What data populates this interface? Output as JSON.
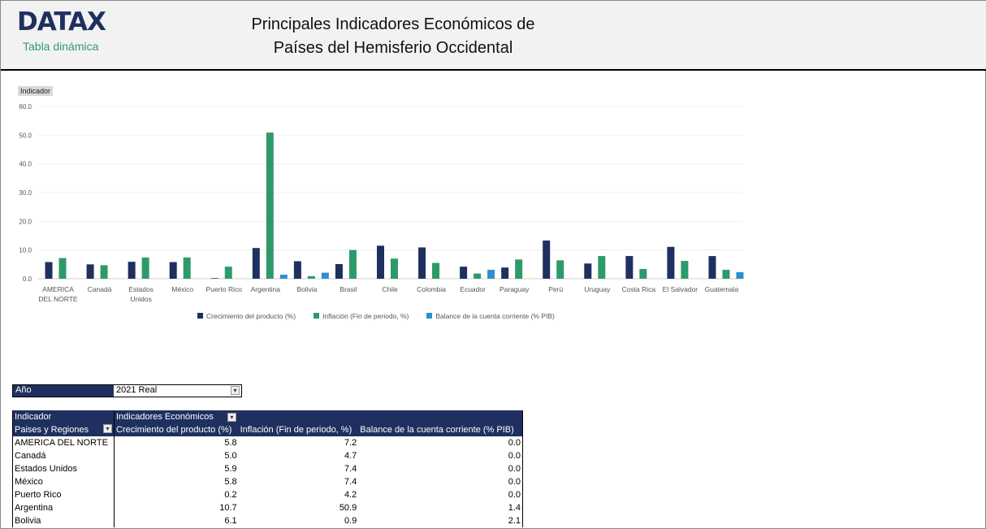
{
  "header": {
    "logo": "DATAX",
    "subtitle": "Tabla dinámica",
    "title_line1": "Principales Indicadores Económicos de",
    "title_line2": "Países del Hemisferio Occidental"
  },
  "chart_button": "Indicador",
  "chart_data": {
    "type": "bar",
    "ylim": [
      0,
      60
    ],
    "yticks": [
      "0.0",
      "10.0",
      "20.0",
      "30.0",
      "40.0",
      "50.0",
      "60.0"
    ],
    "grid": true,
    "legend_position": "bottom",
    "categories": [
      "AMERICA DEL NORTE",
      "Canadá",
      "Estados Unidos",
      "México",
      "Puerto Rico",
      "Argentina",
      "Bolivia",
      "Brasil",
      "Chile",
      "Colombia",
      "Ecuador",
      "Paraguay",
      "Perú",
      "Uruguay",
      "Costa Rica",
      "El Salvador",
      "Guatemala"
    ],
    "series": [
      {
        "name": "Crecimiento del producto (%)",
        "color": "#1f3060",
        "values": [
          5.8,
          5.0,
          5.9,
          5.8,
          0.2,
          10.7,
          6.1,
          5.1,
          11.5,
          10.9,
          4.2,
          3.9,
          13.3,
          5.3,
          7.9,
          11.1,
          7.9
        ]
      },
      {
        "name": "Inflación (Fin de periodo, %)",
        "color": "#2e9a6a",
        "values": [
          7.2,
          4.7,
          7.4,
          7.4,
          4.2,
          50.9,
          0.9,
          10.0,
          7.0,
          5.5,
          1.8,
          6.7,
          6.4,
          7.9,
          3.4,
          6.2,
          3.1
        ]
      },
      {
        "name": "Balance de la cuenta corriente (% PIB)",
        "color": "#2e8fd0",
        "values": [
          0,
          0,
          0,
          0,
          0,
          1.4,
          2.1,
          0,
          0,
          0,
          3.1,
          0,
          0,
          0,
          0,
          0,
          2.3
        ]
      }
    ]
  },
  "filter": {
    "label": "Año",
    "value": "2021 Real"
  },
  "table": {
    "row1": [
      "Indicador",
      "Indicadores Económicos"
    ],
    "headers": [
      "Paises y Regiones",
      "Crecimiento del producto (%)",
      "Inflación (Fin de periodo, %)",
      "Balance de la cuenta corriente (% PIB)"
    ],
    "rows": [
      [
        "AMERICA DEL NORTE",
        "5.8",
        "7.2",
        "0.0"
      ],
      [
        "Canadá",
        "5.0",
        "4.7",
        "0.0"
      ],
      [
        "Estados Unidos",
        "5.9",
        "7.4",
        "0.0"
      ],
      [
        "México",
        "5.8",
        "7.4",
        "0.0"
      ],
      [
        "Puerto Rico",
        "0.2",
        "4.2",
        "0.0"
      ],
      [
        "Argentina",
        "10.7",
        "50.9",
        "1.4"
      ],
      [
        "Bolivia",
        "6.1",
        "0.9",
        "2.1"
      ]
    ]
  }
}
